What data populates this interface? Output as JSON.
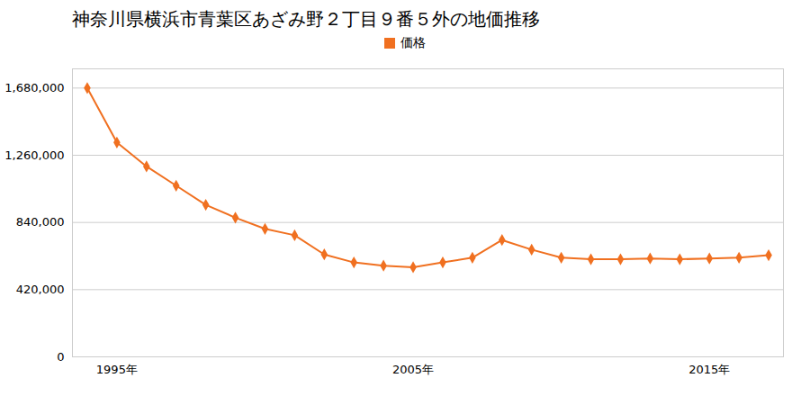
{
  "chart_data": {
    "type": "line",
    "title": "神奈川県横浜市青葉区あざみ野２丁目９番５外の地価推移",
    "x": [
      1994,
      1995,
      1996,
      1997,
      1998,
      1999,
      2000,
      2001,
      2002,
      2003,
      2004,
      2005,
      2006,
      2007,
      2008,
      2009,
      2010,
      2011,
      2012,
      2013,
      2014,
      2015,
      2016,
      2017
    ],
    "series": [
      {
        "name": "価格",
        "color": "#f07020",
        "marker": "diamond",
        "values": [
          1680000,
          1340000,
          1190000,
          1070000,
          950000,
          870000,
          800000,
          760000,
          640000,
          590000,
          570000,
          560000,
          590000,
          620000,
          730000,
          670000,
          620000,
          610000,
          610000,
          615000,
          610000,
          615000,
          620000,
          635000
        ]
      }
    ],
    "xlim": [
      1993.5,
      2017.5
    ],
    "xticks": [
      {
        "value": 1995,
        "label": "1995年"
      },
      {
        "value": 2005,
        "label": "2005年"
      },
      {
        "value": 2015,
        "label": "2015年"
      }
    ],
    "ylim": [
      0,
      1800000
    ],
    "yticks": [
      0,
      {
        "value": 420000,
        "label": "420,000"
      },
      {
        "value": 840000,
        "label": "840,000"
      },
      {
        "value": 1260000,
        "label": "1,260,000"
      },
      {
        "value": 1680000,
        "label": "1,680,000"
      }
    ],
    "grid": true,
    "legend": "top"
  }
}
